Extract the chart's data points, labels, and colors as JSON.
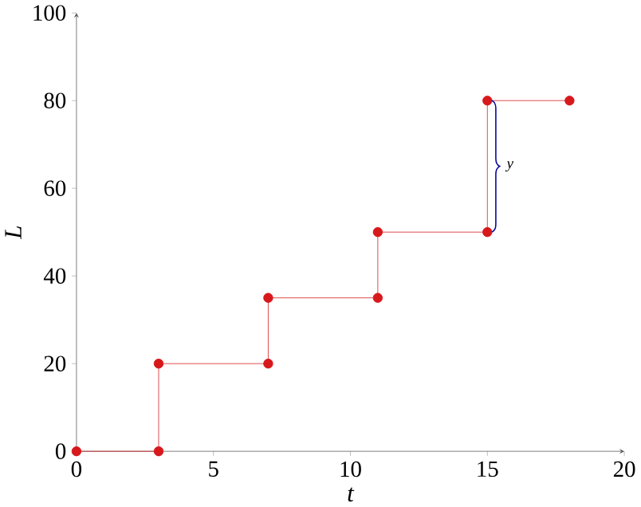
{
  "chart_data": {
    "type": "line",
    "xlabel": "t",
    "ylabel": "L",
    "x": [
      0,
      3,
      3,
      7,
      7,
      11,
      11,
      15,
      15,
      18
    ],
    "values": [
      0,
      0,
      20,
      20,
      35,
      35,
      50,
      50,
      80,
      80
    ],
    "color": "#d7191c",
    "marker": "circle",
    "line_style": "solid",
    "xlim": [
      0,
      20
    ],
    "ylim": [
      0,
      100
    ],
    "xticks": [
      0,
      5,
      10,
      15,
      20
    ],
    "yticks": [
      0,
      20,
      40,
      60,
      80,
      100
    ],
    "grid": false,
    "annotations": [
      {
        "text": "y",
        "x": 15,
        "y": 65
      }
    ]
  }
}
